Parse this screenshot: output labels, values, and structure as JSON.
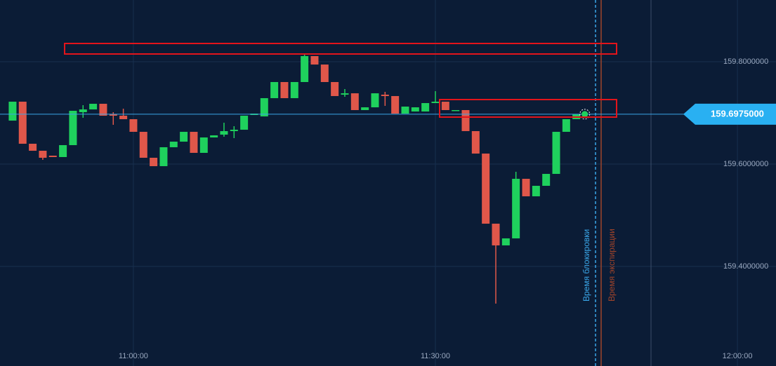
{
  "chart_data": {
    "type": "candlestick",
    "x": [
      "10:48:00",
      "10:49:00",
      "10:50:00",
      "10:51:00",
      "10:52:00",
      "10:53:00",
      "10:54:00",
      "10:55:00",
      "10:56:00",
      "10:57:00",
      "10:58:00",
      "10:59:00",
      "11:00:00",
      "11:01:00",
      "11:02:00",
      "11:03:00",
      "11:04:00",
      "11:05:00",
      "11:06:00",
      "11:07:00",
      "11:08:00",
      "11:09:00",
      "11:10:00",
      "11:11:00",
      "11:12:00",
      "11:13:00",
      "11:14:00",
      "11:15:00",
      "11:16:00",
      "11:17:00",
      "11:18:00",
      "11:19:00",
      "11:20:00",
      "11:21:00",
      "11:22:00",
      "11:23:00",
      "11:24:00",
      "11:25:00",
      "11:26:00",
      "11:27:00",
      "11:28:00",
      "11:29:00",
      "11:30:00",
      "11:31:00",
      "11:32:00",
      "11:33:00",
      "11:34:00",
      "11:35:00",
      "11:36:00",
      "11:37:00",
      "11:38:00",
      "11:39:00",
      "11:40:00",
      "11:41:00",
      "11:42:00",
      "11:43:00",
      "11:44:00"
    ],
    "open": [
      159.6849,
      159.7219,
      159.6397,
      159.626,
      159.6164,
      159.6137,
      159.637,
      159.7014,
      159.7068,
      159.7178,
      159.6972,
      159.6945,
      159.6877,
      159.663,
      159.6123,
      159.5959,
      159.6329,
      159.6438,
      159.663,
      159.6219,
      159.652,
      159.6575,
      159.6644,
      159.6671,
      159.6959,
      159.6931,
      159.7288,
      159.7603,
      159.7288,
      159.7603,
      159.811,
      159.7945,
      159.7603,
      159.7356,
      159.7383,
      159.7055,
      159.7109,
      159.7356,
      159.7329,
      159.6986,
      159.7027,
      159.7027,
      159.7192,
      159.7219,
      159.7041,
      159.7055,
      159.6644,
      159.6205,
      159.4835,
      159.4411,
      159.4548,
      159.5712,
      159.537,
      159.5575,
      159.5808,
      159.663,
      159.6877
    ],
    "high": [
      159.7219,
      159.7219,
      159.6397,
      159.626,
      159.6164,
      159.637,
      159.7041,
      159.7151,
      159.7178,
      159.7178,
      159.7014,
      159.7082,
      159.6877,
      159.663,
      159.6123,
      159.6329,
      159.6438,
      159.663,
      159.663,
      159.652,
      159.6561,
      159.6808,
      159.674,
      159.6945,
      159.6986,
      159.7288,
      159.7603,
      159.7603,
      159.7603,
      159.8137,
      159.811,
      159.7945,
      159.7603,
      159.7466,
      159.7383,
      159.7109,
      159.7383,
      159.7411,
      159.7329,
      159.7123,
      159.7109,
      159.7192,
      159.7425,
      159.7219,
      159.7055,
      159.7055,
      159.6644,
      159.6205,
      159.4835,
      159.4548,
      159.5849,
      159.5712,
      159.5575,
      159.5808,
      159.663,
      159.6877,
      159.6975
    ],
    "low": [
      159.6849,
      159.6397,
      159.626,
      159.6082,
      159.6137,
      159.6137,
      159.637,
      159.6904,
      159.7068,
      159.6945,
      159.6767,
      159.6877,
      159.663,
      159.6123,
      159.5959,
      159.5959,
      159.6329,
      159.6438,
      159.6219,
      159.6219,
      159.652,
      159.6534,
      159.6507,
      159.6671,
      159.6959,
      159.6931,
      159.7288,
      159.7288,
      159.7288,
      159.7603,
      159.7945,
      159.7603,
      159.7329,
      159.7315,
      159.7055,
      159.7055,
      159.7109,
      159.7137,
      159.6986,
      159.6986,
      159.7027,
      159.7027,
      159.7192,
      159.7055,
      159.7041,
      159.6644,
      159.6205,
      159.4835,
      159.3273,
      159.4411,
      159.4548,
      159.537,
      159.537,
      159.5575,
      159.5808,
      159.663,
      159.6877
    ],
    "close": [
      159.7219,
      159.6397,
      159.626,
      159.6123,
      159.6137,
      159.637,
      159.7041,
      159.7068,
      159.7178,
      159.6945,
      159.6945,
      159.6877,
      159.663,
      159.6123,
      159.5959,
      159.6329,
      159.6438,
      159.663,
      159.6219,
      159.652,
      159.6561,
      159.6644,
      159.6671,
      159.6945,
      159.6986,
      159.7288,
      159.7603,
      159.7288,
      159.7603,
      159.811,
      159.7945,
      159.7603,
      159.7329,
      159.7383,
      159.7055,
      159.7109,
      159.7383,
      159.7329,
      159.6986,
      159.7123,
      159.7109,
      159.7192,
      159.7219,
      159.7055,
      159.7055,
      159.6644,
      159.6205,
      159.4835,
      159.4411,
      159.4548,
      159.5712,
      159.537,
      159.5575,
      159.5808,
      159.663,
      159.6877,
      159.6975
    ],
    "up_color": "#1fd15d",
    "down_color": "#e0574a",
    "xlim": [
      "10:46:45",
      "12:03:50"
    ],
    "xticks": [
      "11:00:00",
      "11:30:00",
      "12:00:00"
    ],
    "ylim": [
      159.2054,
      159.9206
    ],
    "yticks": [
      {
        "value": 159.4,
        "label": "159.4000000"
      },
      {
        "value": 159.6,
        "label": "159.6000000"
      },
      {
        "value": 159.8,
        "label": "159.8000000"
      }
    ],
    "grid": true,
    "current_price": {
      "value": 159.6975,
      "label": "159.6975000"
    },
    "lock_label": "Время блокировки",
    "expiry_label": "Время экспирации"
  }
}
